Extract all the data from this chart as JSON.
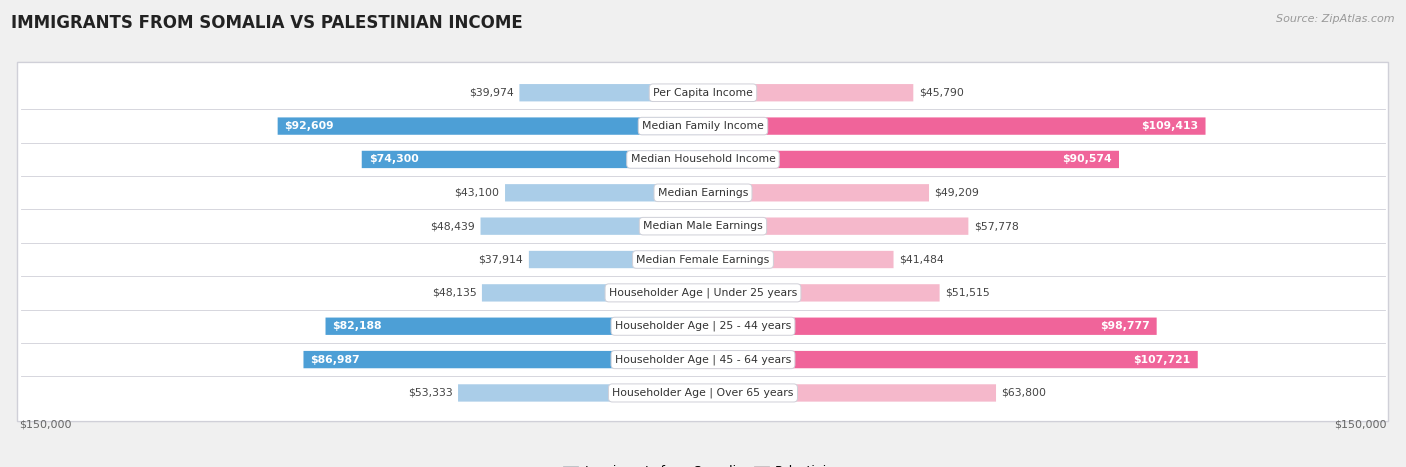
{
  "title": "IMMIGRANTS FROM SOMALIA VS PALESTINIAN INCOME",
  "source": "Source: ZipAtlas.com",
  "categories": [
    "Per Capita Income",
    "Median Family Income",
    "Median Household Income",
    "Median Earnings",
    "Median Male Earnings",
    "Median Female Earnings",
    "Householder Age | Under 25 years",
    "Householder Age | 25 - 44 years",
    "Householder Age | 45 - 64 years",
    "Householder Age | Over 65 years"
  ],
  "somalia_values": [
    39974,
    92609,
    74300,
    43100,
    48439,
    37914,
    48135,
    82188,
    86987,
    53333
  ],
  "palestinian_values": [
    45790,
    109413,
    90574,
    49209,
    57778,
    41484,
    51515,
    98777,
    107721,
    63800
  ],
  "somalia_labels": [
    "$39,974",
    "$92,609",
    "$74,300",
    "$43,100",
    "$48,439",
    "$37,914",
    "$48,135",
    "$82,188",
    "$86,987",
    "$53,333"
  ],
  "palestinian_labels": [
    "$45,790",
    "$109,413",
    "$90,574",
    "$49,209",
    "$57,778",
    "$41,484",
    "$51,515",
    "$98,777",
    "$107,721",
    "$63,800"
  ],
  "somalia_color_light": "#aacde8",
  "somalia_color_dark": "#4d9fd6",
  "palestinian_color_light": "#f5b8cb",
  "palestinian_color_dark": "#f0649a",
  "somalia_high_threshold": 70000,
  "palestinian_high_threshold": 85000,
  "max_value": 150000,
  "axis_label": "$150,000",
  "background_color": "#f0f0f0",
  "row_bg_color": "#ffffff",
  "row_border_color": "#d0d0d8"
}
